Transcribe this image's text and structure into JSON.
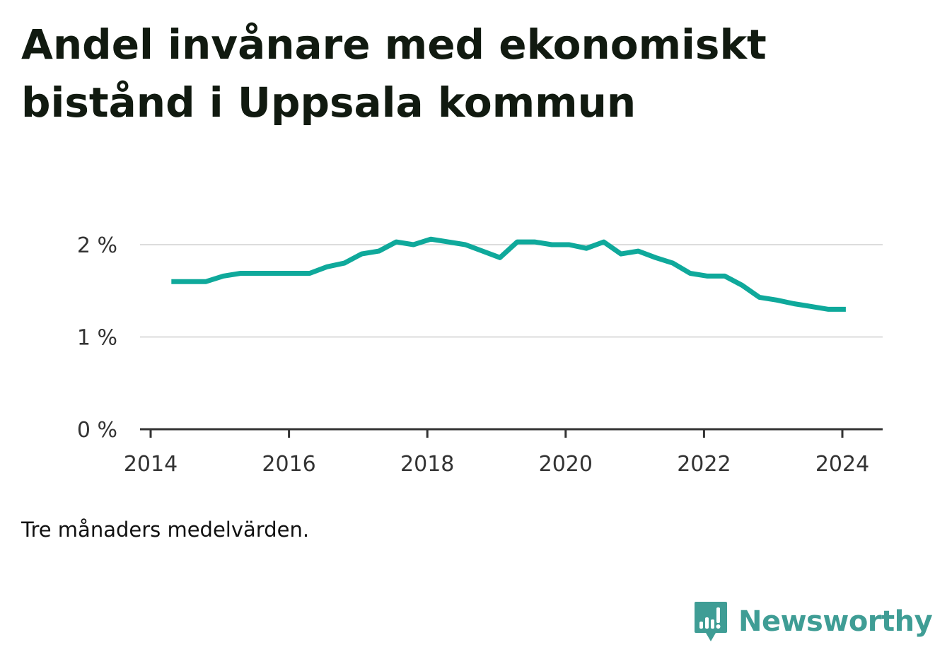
{
  "title": "Andel invånare med ekonomiskt bistånd i Uppsala kommun",
  "note": "Tre månaders medelvärden.",
  "brand": {
    "name": "Newsworthy",
    "color": "#3f9d95",
    "icon": "newsworthy-logo-icon"
  },
  "chart_data": {
    "type": "line",
    "title": "Andel invånare med ekonomiskt bistånd i Uppsala kommun",
    "xlabel": "",
    "ylabel": "",
    "ylim": [
      0,
      2.3
    ],
    "xlim": [
      2014.0,
      2024.5
    ],
    "grid": true,
    "line_color": "#0fa99b",
    "y_ticks": [
      {
        "value": 0,
        "label": "0 %"
      },
      {
        "value": 1,
        "label": "1 %"
      },
      {
        "value": 2,
        "label": "2 %"
      }
    ],
    "x_ticks": [
      {
        "value": 2014,
        "label": "2014"
      },
      {
        "value": 2016,
        "label": "2016"
      },
      {
        "value": 2018,
        "label": "2018"
      },
      {
        "value": 2020,
        "label": "2020"
      },
      {
        "value": 2022,
        "label": "2022"
      },
      {
        "value": 2024,
        "label": "2024"
      }
    ],
    "series": [
      {
        "values": [
          [
            2014.3,
            1.6
          ],
          [
            2014.55,
            1.6
          ],
          [
            2014.8,
            1.6
          ],
          [
            2015.05,
            1.66
          ],
          [
            2015.3,
            1.69
          ],
          [
            2015.55,
            1.69
          ],
          [
            2015.8,
            1.69
          ],
          [
            2016.05,
            1.69
          ],
          [
            2016.3,
            1.69
          ],
          [
            2016.55,
            1.76
          ],
          [
            2016.8,
            1.8
          ],
          [
            2017.05,
            1.9
          ],
          [
            2017.3,
            1.93
          ],
          [
            2017.55,
            2.03
          ],
          [
            2017.8,
            2.0
          ],
          [
            2018.05,
            2.06
          ],
          [
            2018.3,
            2.03
          ],
          [
            2018.55,
            2.0
          ],
          [
            2018.8,
            1.93
          ],
          [
            2019.05,
            1.86
          ],
          [
            2019.3,
            2.03
          ],
          [
            2019.55,
            2.03
          ],
          [
            2019.8,
            2.0
          ],
          [
            2020.05,
            2.0
          ],
          [
            2020.3,
            1.96
          ],
          [
            2020.55,
            2.03
          ],
          [
            2020.8,
            1.9
          ],
          [
            2021.05,
            1.93
          ],
          [
            2021.3,
            1.86
          ],
          [
            2021.55,
            1.8
          ],
          [
            2021.8,
            1.69
          ],
          [
            2022.05,
            1.66
          ],
          [
            2022.3,
            1.66
          ],
          [
            2022.55,
            1.56
          ],
          [
            2022.8,
            1.43
          ],
          [
            2023.05,
            1.4
          ],
          [
            2023.3,
            1.36
          ],
          [
            2023.55,
            1.33
          ],
          [
            2023.8,
            1.3
          ],
          [
            2024.05,
            1.3
          ]
        ]
      }
    ]
  }
}
